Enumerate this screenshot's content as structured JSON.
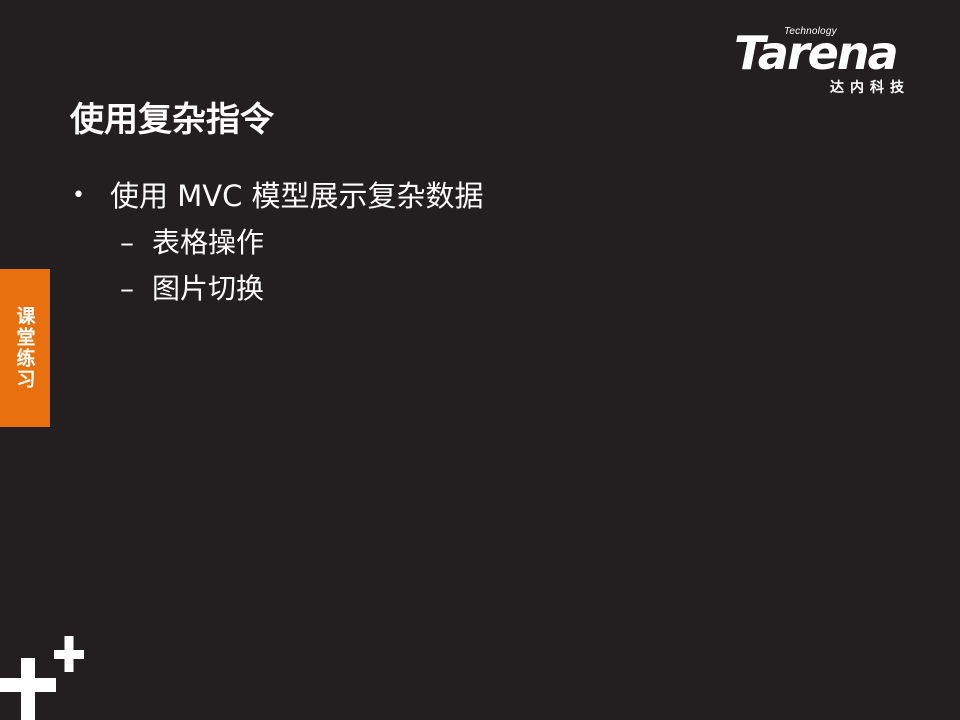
{
  "logo": {
    "technology": "Technology",
    "wordmark": "Tarena",
    "chinese": "达内科技"
  },
  "slide": {
    "title": "使用复杂指令",
    "bullets": [
      {
        "marker": "•",
        "text": "使用 MVC 模型展示复杂数据",
        "sub": [
          {
            "marker": "–",
            "text": "表格操作"
          },
          {
            "marker": "–",
            "text": "图片切换"
          }
        ]
      }
    ]
  },
  "side_tab": {
    "label": "课堂练习",
    "color": "#e8700e"
  },
  "colors": {
    "background": "#231f20",
    "text": "#ffffff",
    "accent": "#e8700e"
  },
  "icons": {
    "logo": "tarena-logo",
    "decoration": "plus-cross-icon"
  }
}
